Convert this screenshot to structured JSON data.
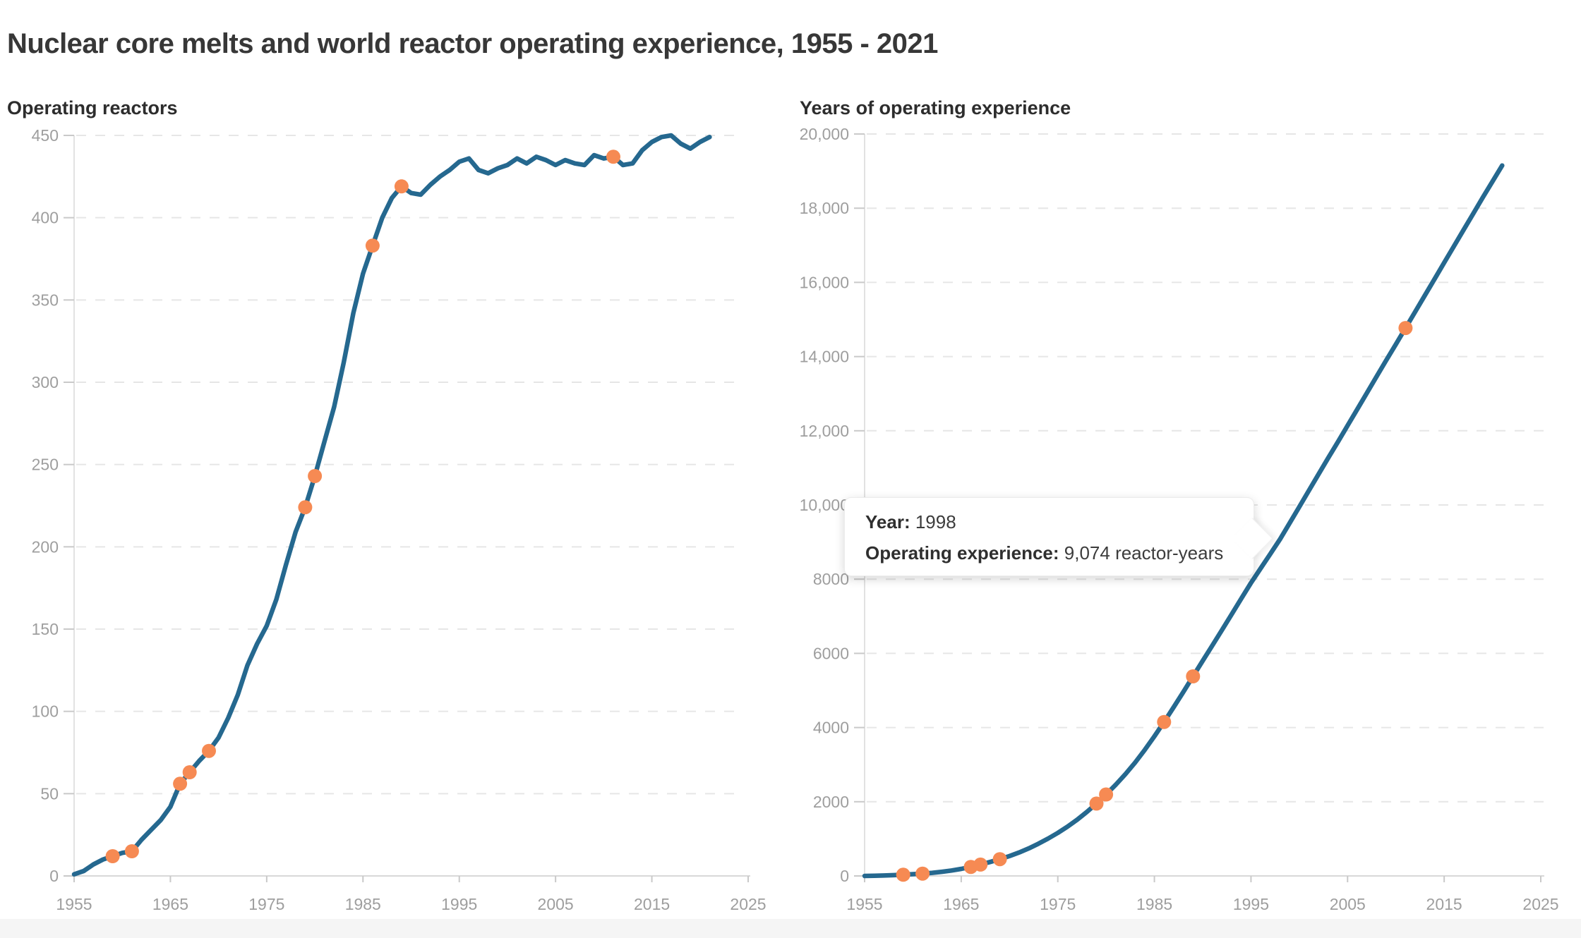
{
  "page": {
    "title": "Nuclear core melts and world reactor operating experience, 1955 - 2021"
  },
  "colors": {
    "series_line": "#25688f",
    "event_marker": "#f68a53",
    "tick_text": "#9e9e9e",
    "gridline": "#e6e6e6",
    "baseline": "#d8d8d8",
    "axis_line": "#e2e2e2",
    "tick_stub": "#c9c9c9"
  },
  "tooltip": {
    "year_label": "Year:",
    "year_value": "1998",
    "exp_label": "Operating experience:",
    "exp_value": "9,074 reactor-years"
  },
  "chart_data": [
    {
      "type": "line",
      "title": "Operating reactors",
      "xlabel": "",
      "ylabel": "Operating reactors",
      "xlim": [
        1955,
        2025
      ],
      "ylim": [
        0,
        450
      ],
      "grid": "horizontal-dashed",
      "legend_position": "none",
      "x_ticks": [
        1955,
        1965,
        1975,
        1985,
        1995,
        2005,
        2015,
        2025
      ],
      "y_ticks": [
        0,
        50,
        100,
        150,
        200,
        250,
        300,
        350,
        400,
        450
      ],
      "y_tick_labels": [
        "0",
        "50",
        "100",
        "150",
        "200",
        "250",
        "300",
        "350",
        "400",
        "450"
      ],
      "x": [
        1955,
        1956,
        1957,
        1958,
        1959,
        1960,
        1961,
        1962,
        1963,
        1964,
        1965,
        1966,
        1967,
        1968,
        1969,
        1970,
        1971,
        1972,
        1973,
        1974,
        1975,
        1976,
        1977,
        1978,
        1979,
        1980,
        1981,
        1982,
        1983,
        1984,
        1985,
        1986,
        1987,
        1988,
        1989,
        1990,
        1991,
        1992,
        1993,
        1994,
        1995,
        1996,
        1997,
        1998,
        1999,
        2000,
        2001,
        2002,
        2003,
        2004,
        2005,
        2006,
        2007,
        2008,
        2009,
        2010,
        2011,
        2012,
        2013,
        2014,
        2015,
        2016,
        2017,
        2018,
        2019,
        2020,
        2021
      ],
      "values": [
        1,
        3,
        7,
        10,
        12,
        14,
        15,
        22,
        28,
        34,
        42,
        56,
        63,
        70,
        76,
        84,
        96,
        110,
        128,
        141,
        152,
        168,
        189,
        209,
        224,
        243,
        264,
        285,
        312,
        342,
        366,
        383,
        400,
        412,
        419,
        415,
        414,
        420,
        425,
        429,
        434,
        436,
        429,
        427,
        430,
        432,
        436,
        433,
        437,
        435,
        432,
        435,
        433,
        432,
        438,
        436,
        437,
        432,
        433,
        441,
        446,
        449,
        450,
        445,
        442,
        446,
        449
      ],
      "markers": {
        "name": "core melt events",
        "years": [
          1959,
          1961,
          1966,
          1967,
          1969,
          1979,
          1980,
          1986,
          1989,
          2011
        ]
      }
    },
    {
      "type": "line",
      "title": "Years of operating experience",
      "xlabel": "",
      "ylabel": "Years of operating experience (reactor-years)",
      "xlim": [
        1955,
        2025
      ],
      "ylim": [
        0,
        20000
      ],
      "grid": "horizontal-dashed",
      "legend_position": "none",
      "x_ticks": [
        1955,
        1965,
        1975,
        1985,
        1995,
        2005,
        2015,
        2025
      ],
      "y_ticks": [
        0,
        2000,
        4000,
        6000,
        8000,
        10000,
        12000,
        14000,
        16000,
        18000,
        20000
      ],
      "y_tick_labels": [
        "0",
        "2000",
        "4000",
        "6000",
        "8000",
        "10,000",
        "12,000",
        "14,000",
        "16,000",
        "18,000",
        "20,000"
      ],
      "x": [
        1955,
        1956,
        1957,
        1958,
        1959,
        1960,
        1961,
        1962,
        1963,
        1964,
        1965,
        1966,
        1967,
        1968,
        1969,
        1970,
        1971,
        1972,
        1973,
        1974,
        1975,
        1976,
        1977,
        1978,
        1979,
        1980,
        1981,
        1982,
        1983,
        1984,
        1985,
        1986,
        1987,
        1988,
        1989,
        1990,
        1991,
        1992,
        1993,
        1994,
        1995,
        1996,
        1997,
        1998,
        1999,
        2000,
        2001,
        2002,
        2003,
        2004,
        2005,
        2006,
        2007,
        2008,
        2009,
        2010,
        2011,
        2012,
        2013,
        2014,
        2015,
        2016,
        2017,
        2018,
        2019,
        2020,
        2021
      ],
      "values": [
        0,
        4,
        11,
        21,
        33,
        47,
        62,
        84,
        112,
        146,
        190,
        244,
        307,
        377,
        453,
        537,
        633,
        743,
        868,
        1008,
        1160,
        1328,
        1516,
        1725,
        1950,
        2195,
        2458,
        2743,
        3055,
        3398,
        3765,
        4150,
        4550,
        4960,
        5380,
        5798,
        6212,
        6632,
        7056,
        7478,
        7900,
        8290,
        8680,
        9074,
        9512,
        9950,
        10390,
        10830,
        11270,
        11700,
        12140,
        12580,
        13020,
        13460,
        13900,
        14330,
        14770,
        15210,
        15650,
        16090,
        16530,
        16970,
        17410,
        17850,
        18290,
        18720,
        19150
      ],
      "markers": {
        "name": "core melt events",
        "years": [
          1959,
          1961,
          1966,
          1967,
          1969,
          1979,
          1980,
          1986,
          1989,
          2011
        ]
      },
      "highlight_point": {
        "year": 1998,
        "value": 9074
      }
    }
  ]
}
